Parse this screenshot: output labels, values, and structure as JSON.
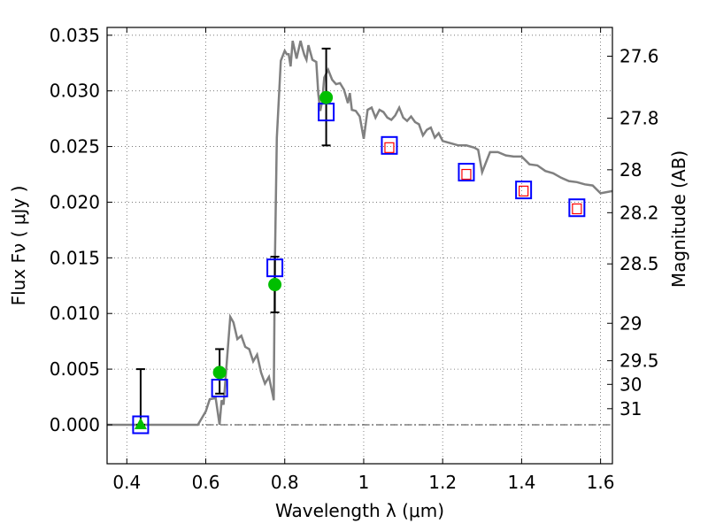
{
  "chart_data": {
    "type": "line",
    "title": "",
    "xlabel": "Wavelength  λ (μm)",
    "ylabel": "Flux  Fν  ( μJy )",
    "y2label": "Magnitude (AB)",
    "xlim": [
      0.35,
      1.63
    ],
    "ylim": [
      -0.0035,
      0.0357
    ],
    "grid": true,
    "xticks": [
      {
        "value": 0.4,
        "label": "0.4"
      },
      {
        "value": 0.6,
        "label": "0.6"
      },
      {
        "value": 0.8,
        "label": "0.8"
      },
      {
        "value": 1.0,
        "label": "1"
      },
      {
        "value": 1.2,
        "label": "1.2"
      },
      {
        "value": 1.4,
        "label": "1.4"
      },
      {
        "value": 1.6,
        "label": "1.6"
      }
    ],
    "yticks": [
      {
        "value": 0.0,
        "label": "0.000"
      },
      {
        "value": 0.005,
        "label": "0.005"
      },
      {
        "value": 0.01,
        "label": "0.010"
      },
      {
        "value": 0.015,
        "label": "0.015"
      },
      {
        "value": 0.02,
        "label": "0.020"
      },
      {
        "value": 0.025,
        "label": "0.025"
      },
      {
        "value": 0.03,
        "label": "0.030"
      },
      {
        "value": 0.035,
        "label": "0.035"
      }
    ],
    "mag_ticks": [
      {
        "label": "27.6",
        "value": 27.6
      },
      {
        "label": "27.8",
        "value": 27.8
      },
      {
        "label": "28",
        "value": 28.0
      },
      {
        "label": "28.2",
        "value": 28.2
      },
      {
        "label": "28.5",
        "value": 28.5
      },
      {
        "label": "29",
        "value": 29.0
      },
      {
        "label": "29.5",
        "value": 29.5
      },
      {
        "label": "30",
        "value": 30.0
      },
      {
        "label": "31",
        "value": 31.0
      }
    ],
    "series": [
      {
        "kind": "model_spectrum",
        "color": "#808080",
        "x": [
          0.35,
          0.58,
          0.6,
          0.61,
          0.625,
          0.635,
          0.64,
          0.645,
          0.655,
          0.662,
          0.67,
          0.68,
          0.69,
          0.7,
          0.71,
          0.72,
          0.73,
          0.74,
          0.75,
          0.76,
          0.77,
          0.772,
          0.775,
          0.78,
          0.79,
          0.8,
          0.805,
          0.81,
          0.815,
          0.82,
          0.83,
          0.84,
          0.845,
          0.85,
          0.855,
          0.86,
          0.87,
          0.88,
          0.885,
          0.89,
          0.895,
          0.9,
          0.91,
          0.92,
          0.93,
          0.94,
          0.95,
          0.96,
          0.965,
          0.97,
          0.98,
          0.99,
          1.0,
          1.01,
          1.02,
          1.03,
          1.04,
          1.05,
          1.06,
          1.07,
          1.08,
          1.09,
          1.1,
          1.11,
          1.12,
          1.13,
          1.14,
          1.15,
          1.16,
          1.17,
          1.18,
          1.19,
          1.2,
          1.22,
          1.24,
          1.26,
          1.28,
          1.29,
          1.3,
          1.32,
          1.34,
          1.36,
          1.38,
          1.4,
          1.42,
          1.44,
          1.46,
          1.48,
          1.5,
          1.52,
          1.54,
          1.56,
          1.58,
          1.6,
          1.63
        ],
        "y": [
          0.0,
          0.0,
          0.0012,
          0.0023,
          0.0024,
          0.0,
          0.0022,
          0.0018,
          0.0065,
          0.0097,
          0.0092,
          0.0077,
          0.008,
          0.007,
          0.0068,
          0.0057,
          0.0063,
          0.0047,
          0.0037,
          0.0043,
          0.0026,
          0.0022,
          0.0145,
          0.0258,
          0.0327,
          0.0336,
          0.0333,
          0.0333,
          0.0322,
          0.0345,
          0.0329,
          0.0345,
          0.0338,
          0.0332,
          0.0328,
          0.0341,
          0.0328,
          0.0326,
          0.0297,
          0.0282,
          0.0291,
          0.0312,
          0.0319,
          0.031,
          0.0306,
          0.0307,
          0.0301,
          0.0289,
          0.0298,
          0.0283,
          0.0282,
          0.0277,
          0.0257,
          0.0283,
          0.0285,
          0.0276,
          0.0283,
          0.0281,
          0.0276,
          0.0274,
          0.0278,
          0.0285,
          0.0276,
          0.0273,
          0.0277,
          0.0272,
          0.027,
          0.026,
          0.0265,
          0.0267,
          0.0258,
          0.0262,
          0.0255,
          0.0253,
          0.0251,
          0.0251,
          0.0249,
          0.0247,
          0.0227,
          0.0245,
          0.0245,
          0.0242,
          0.0241,
          0.0241,
          0.0234,
          0.0233,
          0.0228,
          0.0226,
          0.0222,
          0.0219,
          0.0218,
          0.0216,
          0.0215,
          0.0208,
          0.021
        ]
      },
      {
        "kind": "model_photometry",
        "marker": "square",
        "color": "#0000ff",
        "x": [
          0.435,
          0.635,
          0.775,
          0.905,
          1.065,
          1.26,
          1.405,
          1.54
        ],
        "y": [
          0.0,
          0.0033,
          0.0141,
          0.0281,
          0.0251,
          0.0227,
          0.0211,
          0.0195
        ]
      },
      {
        "kind": "upper_limits",
        "marker": "small-square",
        "color": "#ff0000",
        "x": [
          1.065,
          1.26,
          1.405,
          1.54
        ],
        "y": [
          0.0249,
          0.0225,
          0.021,
          0.0194
        ]
      },
      {
        "kind": "observed_photometry",
        "marker": "circle",
        "color": "#00bf00",
        "x": [
          0.635,
          0.775,
          0.905
        ],
        "y": [
          0.0047,
          0.0126,
          0.0294
        ],
        "yerr_low": [
          0.0028,
          0.0101,
          0.0251
        ],
        "yerr_high": [
          0.0068,
          0.0151,
          0.0338
        ]
      },
      {
        "kind": "nondetection",
        "marker": "triangle",
        "color": "#00bf00",
        "x": [
          0.435
        ],
        "y": [
          0.0
        ],
        "yerr_low": [
          0.0
        ],
        "yerr_high": [
          0.005
        ]
      }
    ]
  }
}
